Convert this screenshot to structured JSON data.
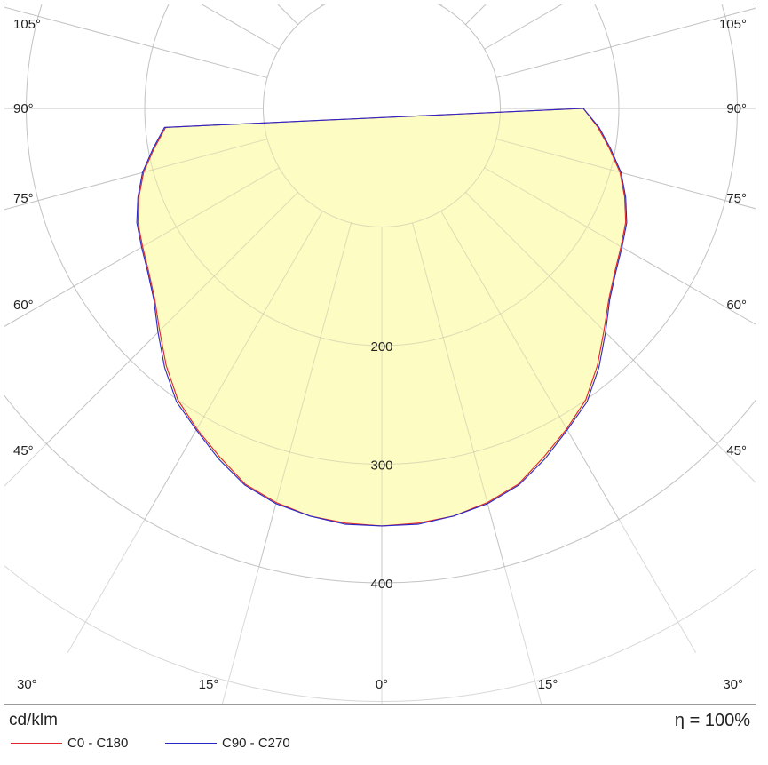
{
  "chart_data": {
    "type": "polar",
    "unit_label": "cd/klm",
    "efficiency_label": "η = 100%",
    "radial_ticks": [
      200,
      300,
      400
    ],
    "radial_max": 500,
    "angle_labels": {
      "left": [
        "105°",
        "90°",
        "75°",
        "60°",
        "45°",
        "30°",
        "15°",
        "0°"
      ],
      "right": [
        "105°",
        "90°",
        "75°",
        "60°",
        "45°",
        "30°",
        "15°"
      ]
    },
    "series": [
      {
        "name": "C0 - C180",
        "color": "#e0262a",
        "angles": [
          0,
          5,
          10,
          15,
          20,
          25,
          30,
          35,
          40,
          45,
          50,
          55,
          60,
          65,
          70,
          75,
          80,
          85,
          90
        ],
        "values": [
          352,
          351,
          349,
          344,
          337,
          324,
          312,
          300,
          283,
          265,
          250,
          240,
          233,
          227,
          218,
          208,
          195,
          183,
          170
        ]
      },
      {
        "name": "C90 - C270",
        "color": "#2828c8",
        "angles": [
          0,
          5,
          10,
          15,
          20,
          25,
          30,
          35,
          40,
          45,
          50,
          55,
          60,
          65,
          70,
          75,
          80,
          85,
          90
        ],
        "values": [
          352,
          352,
          349,
          345,
          338,
          326,
          313,
          302,
          285,
          267,
          251,
          241,
          234,
          228,
          219,
          209,
          196,
          184,
          170
        ]
      }
    ],
    "fill_color": "#fdfcc2"
  }
}
